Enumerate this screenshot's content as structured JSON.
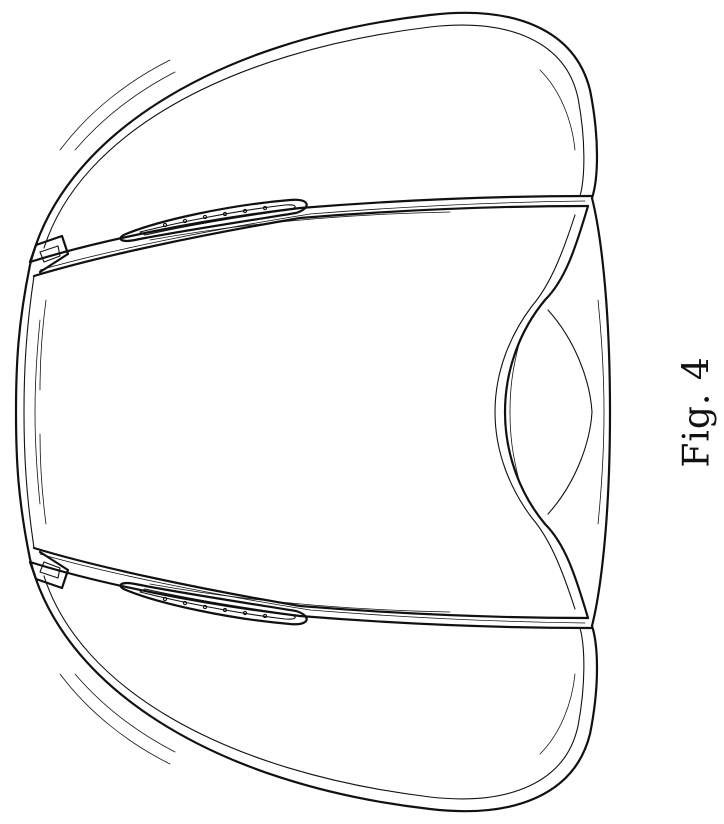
{
  "figure": {
    "label": "Fig. 4"
  }
}
